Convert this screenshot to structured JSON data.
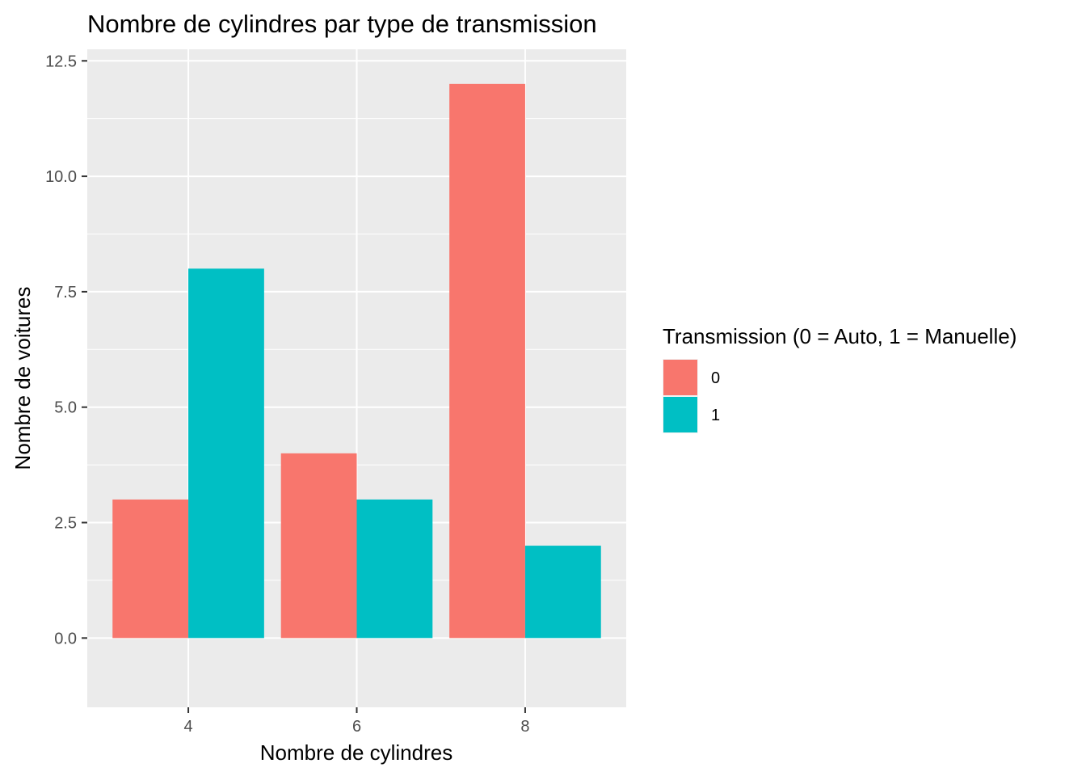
{
  "chart_data": {
    "type": "bar",
    "title": "Nombre de cylindres par type de transmission",
    "xlabel": "Nombre de cylindres",
    "ylabel": "Nombre de voitures",
    "categories": [
      "4",
      "6",
      "8"
    ],
    "series": [
      {
        "name": "0",
        "color": "#F8766D",
        "values": [
          3,
          4,
          12
        ]
      },
      {
        "name": "1",
        "color": "#00BFC4",
        "values": [
          8,
          3,
          2
        ]
      }
    ],
    "ylim": [
      -1.5,
      12.75
    ],
    "yticks": [
      0,
      2.5,
      5,
      7.5,
      10,
      12.5
    ],
    "ytick_labels": [
      "0.0",
      "2.5",
      "5.0",
      "7.5",
      "10.0",
      "12.5"
    ],
    "legend": {
      "title": "Transmission (0 = Auto, 1 = Manuelle)",
      "placement": "right"
    },
    "grid": true,
    "panel_background": "#EBEBEB",
    "gridline_color": "#FFFFFF"
  }
}
